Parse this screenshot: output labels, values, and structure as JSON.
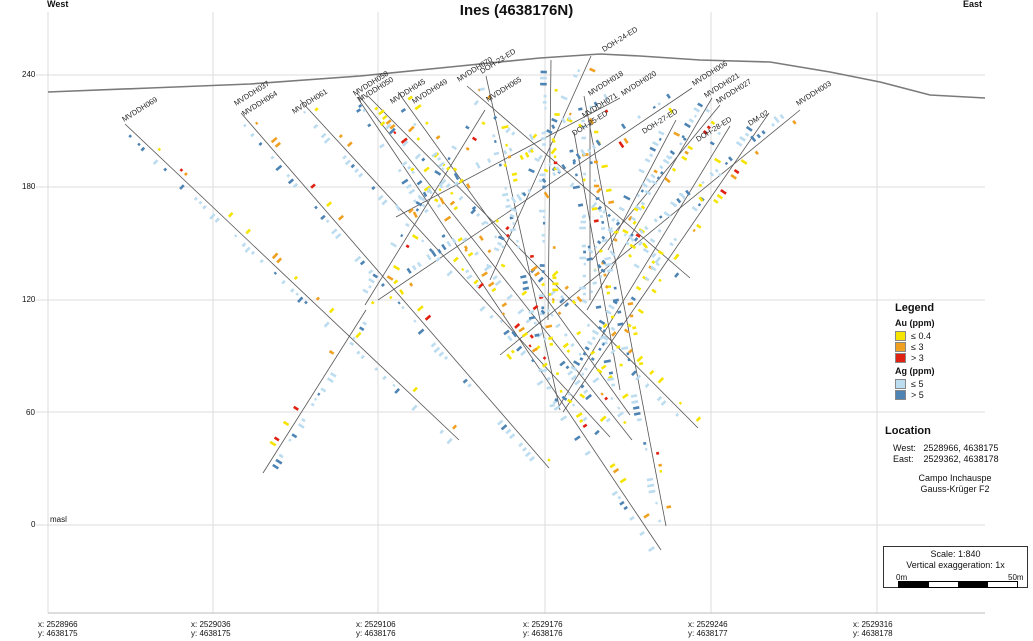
{
  "title": "Ines (4638176N)",
  "direction": {
    "left": "West",
    "right": "East"
  },
  "y_axis": {
    "ticks": [
      "240",
      "180",
      "120",
      "60",
      "0"
    ],
    "unit_label": "masl"
  },
  "x_axis": {
    "ticks": [
      {
        "x": "x: 2528966",
        "y": "y: 4638175"
      },
      {
        "x": "x: 2529036",
        "y": "y: 4638175"
      },
      {
        "x": "x: 2529106",
        "y": "y: 4638176"
      },
      {
        "x": "x: 2529176",
        "y": "y: 4638176"
      },
      {
        "x": "x: 2529246",
        "y": "y: 4638177"
      },
      {
        "x": "x: 2529316",
        "y": "y: 4638178"
      }
    ]
  },
  "drillholes": [
    "MVDDH069",
    "MVDDH037",
    "MVDDH064",
    "MVDDH061",
    "MVDDH058",
    "MVDDH050",
    "MVDDH045",
    "MVDDH049",
    "MVDDH070",
    "DOH-23-ED",
    "MVDDH065",
    "DOH-24-ED",
    "MVDDH071",
    "MVDDH018",
    "DOH-25-ED",
    "MVDDH020",
    "MVDDH006",
    "MVDDH021",
    "MVDDH027",
    "DOH-27-ED",
    "DOH-28-ED",
    "DM-02",
    "MVDDH003"
  ],
  "legend": {
    "title": "Legend",
    "au": {
      "title": "Au (ppm)",
      "items": [
        {
          "label": "≤ 0.4",
          "color": "#f5e400"
        },
        {
          "label": "≤ 3",
          "color": "#f0a020"
        },
        {
          "label": "> 3",
          "color": "#e02010"
        }
      ]
    },
    "ag": {
      "title": "Ag (ppm)",
      "items": [
        {
          "label": "≤ 5",
          "color": "#bcdcf0"
        },
        {
          "label": "> 5",
          "color": "#4d84b4"
        }
      ]
    }
  },
  "location": {
    "title": "Location",
    "west": "West:   2528966, 4638175",
    "east": "East:    2529362, 4638178",
    "system_1": "Campo Inchauspe",
    "system_2": "Gauss-Krüger F2"
  },
  "scale": {
    "text": "Scale: 1:840",
    "vertical": "Vertical exaggeration: 1x",
    "start": "0m",
    "end": "50m"
  }
}
